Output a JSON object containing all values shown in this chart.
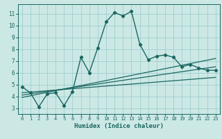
{
  "title": "",
  "xlabel": "Humidex (Indice chaleur)",
  "ylabel": "",
  "bg_color": "#cce8e5",
  "grid_color": "#9ecece",
  "line_color": "#1a6660",
  "xlim": [
    -0.5,
    23.5
  ],
  "ylim": [
    2.5,
    11.8
  ],
  "xticks": [
    0,
    1,
    2,
    3,
    4,
    5,
    6,
    7,
    8,
    9,
    10,
    11,
    12,
    13,
    14,
    15,
    16,
    17,
    18,
    19,
    20,
    21,
    22,
    23
  ],
  "yticks": [
    3,
    4,
    5,
    6,
    7,
    8,
    9,
    10,
    11
  ],
  "main_x": [
    0,
    1,
    2,
    3,
    4,
    5,
    6,
    7,
    8,
    9,
    10,
    11,
    12,
    13,
    14,
    15,
    16,
    17,
    18,
    19,
    20,
    21,
    22,
    23
  ],
  "main_y": [
    4.8,
    4.3,
    3.1,
    4.2,
    4.3,
    3.2,
    4.4,
    7.3,
    6.0,
    8.1,
    10.3,
    11.1,
    10.8,
    11.2,
    8.4,
    7.1,
    7.4,
    7.5,
    7.3,
    6.5,
    6.7,
    6.4,
    6.2,
    6.2
  ],
  "trend1_x": [
    0,
    23
  ],
  "trend1_y": [
    3.9,
    7.2
  ],
  "trend2_x": [
    0,
    23
  ],
  "trend2_y": [
    4.1,
    6.5
  ],
  "trend3_x": [
    0,
    23
  ],
  "trend3_y": [
    4.3,
    5.6
  ],
  "font_color": "#1a6660",
  "marker": "D",
  "marker_size": 2.2,
  "line_width": 1.0,
  "trend_lw": 0.9,
  "xlabel_fontsize": 6.5,
  "tick_fontsize_x": 5.0,
  "tick_fontsize_y": 5.5
}
